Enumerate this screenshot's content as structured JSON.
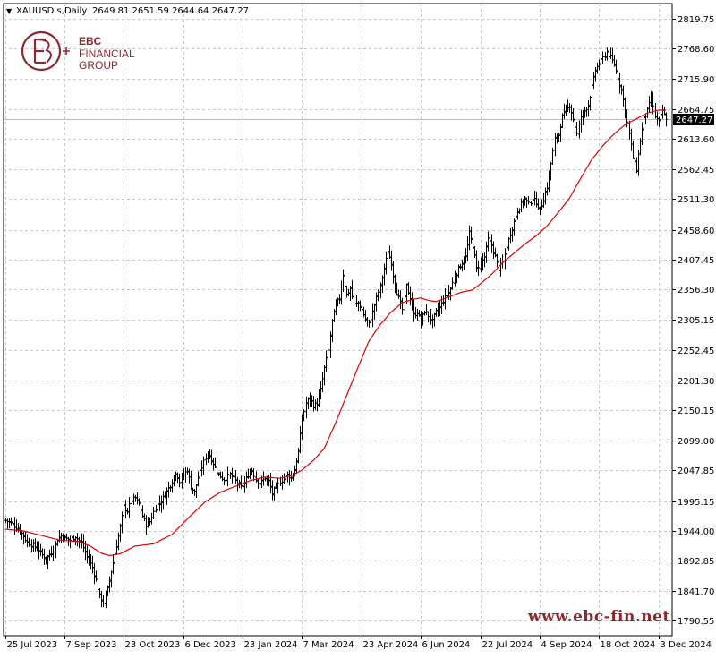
{
  "header": {
    "symbol": "XAUUSD.s,Daily",
    "ohlc": "2649.81 2651.59 2644.64 2647.27",
    "dropdown_glyph": "▼"
  },
  "logo": {
    "line1": "EBC",
    "line2": "FINANCIAL",
    "line3": "GROUP",
    "color": "#8b2a2e"
  },
  "watermark": "www.ebc-fin.net",
  "colors": {
    "bar": "#000000",
    "ma": "#e00000",
    "grid": "#c8c8c8",
    "price_label_bg": "#000000",
    "price_label_fg": "#ffffff"
  },
  "chart_data": {
    "type": "ohlc",
    "instrument": "XAUUSD.s",
    "timeframe": "Daily",
    "current_price": 2647.27,
    "current_price_label": "2647.27",
    "ylim": [
      1765.0,
      2845.0
    ],
    "y_ticks": [
      2819.75,
      2768.6,
      2715.9,
      2664.75,
      2613.6,
      2562.45,
      2511.3,
      2458.6,
      2407.45,
      2356.3,
      2305.15,
      2252.45,
      2201.3,
      2150.15,
      2099.0,
      2047.85,
      1995.15,
      1944.0,
      1892.85,
      1841.7,
      1790.55
    ],
    "y_tick_labels": [
      "2819.75",
      "2768.60",
      "2715.90",
      "2664.75",
      "2613.60",
      "2562.45",
      "2511.30",
      "2458.60",
      "2407.45",
      "2356.30",
      "2305.15",
      "2252.45",
      "2201.30",
      "2150.15",
      "2099.00",
      "2047.85",
      "1995.15",
      "1944.00",
      "1892.85",
      "1841.70",
      "1790.55"
    ],
    "x_tick_labels": [
      "25 Jul 2023",
      "7 Sep 2023",
      "23 Oct 2023",
      "6 Dec 2023",
      "23 Jan 2024",
      "7 Mar 2024",
      "23 Apr 2024",
      "6 Jun 2024",
      "22 Jul 2024",
      "4 Sep 2024",
      "18 Oct 2024",
      "3 Dec 2024"
    ],
    "x_tick_index": [
      0,
      32,
      64,
      96,
      128,
      160,
      192,
      224,
      256,
      288,
      320,
      352
    ],
    "bar_count": 357,
    "close_anchors": [
      [
        0,
        1962
      ],
      [
        3,
        1958
      ],
      [
        8,
        1945
      ],
      [
        12,
        1925
      ],
      [
        17,
        1915
      ],
      [
        22,
        1895
      ],
      [
        26,
        1912
      ],
      [
        28,
        1930
      ],
      [
        30,
        1936
      ],
      [
        32,
        1932
      ],
      [
        35,
        1928
      ],
      [
        38,
        1935
      ],
      [
        41,
        1923
      ],
      [
        44,
        1900
      ],
      [
        47,
        1882
      ],
      [
        49,
        1860
      ],
      [
        51,
        1832
      ],
      [
        53,
        1822
      ],
      [
        55,
        1845
      ],
      [
        57,
        1875
      ],
      [
        59,
        1905
      ],
      [
        62,
        1950
      ],
      [
        64,
        1985
      ],
      [
        66,
        1978
      ],
      [
        68,
        1996
      ],
      [
        70,
        2000
      ],
      [
        72,
        1990
      ],
      [
        74,
        1970
      ],
      [
        76,
        1955
      ],
      [
        78,
        1960
      ],
      [
        81,
        1985
      ],
      [
        84,
        1995
      ],
      [
        87,
        2012
      ],
      [
        90,
        2028
      ],
      [
        92,
        2045
      ],
      [
        94,
        2028
      ],
      [
        96,
        2040
      ],
      [
        98,
        2048
      ],
      [
        100,
        2020
      ],
      [
        102,
        2010
      ],
      [
        104,
        2035
      ],
      [
        107,
        2062
      ],
      [
        109,
        2078
      ],
      [
        112,
        2060
      ],
      [
        115,
        2040
      ],
      [
        118,
        2032
      ],
      [
        121,
        2040
      ],
      [
        124,
        2030
      ],
      [
        127,
        2018
      ],
      [
        129,
        2025
      ],
      [
        131,
        2040
      ],
      [
        133,
        2048
      ],
      [
        135,
        2032
      ],
      [
        137,
        2025
      ],
      [
        140,
        2035
      ],
      [
        142,
        2028
      ],
      [
        144,
        2008
      ],
      [
        146,
        2018
      ],
      [
        148,
        2028
      ],
      [
        150,
        2033
      ],
      [
        152,
        2040
      ],
      [
        154,
        2035
      ],
      [
        156,
        2048
      ],
      [
        158,
        2080
      ],
      [
        160,
        2135
      ],
      [
        162,
        2162
      ],
      [
        164,
        2172
      ],
      [
        166,
        2158
      ],
      [
        168,
        2162
      ],
      [
        170,
        2185
      ],
      [
        172,
        2222
      ],
      [
        174,
        2252
      ],
      [
        176,
        2302
      ],
      [
        178,
        2330
      ],
      [
        180,
        2342
      ],
      [
        182,
        2383
      ],
      [
        184,
        2346
      ],
      [
        186,
        2358
      ],
      [
        188,
        2330
      ],
      [
        190,
        2334
      ],
      [
        192,
        2322
      ],
      [
        194,
        2305
      ],
      [
        196,
        2298
      ],
      [
        198,
        2318
      ],
      [
        200,
        2342
      ],
      [
        202,
        2362
      ],
      [
        204,
        2392
      ],
      [
        206,
        2422
      ],
      [
        208,
        2402
      ],
      [
        210,
        2362
      ],
      [
        212,
        2342
      ],
      [
        214,
        2322
      ],
      [
        216,
        2362
      ],
      [
        218,
        2342
      ],
      [
        220,
        2312
      ],
      [
        222,
        2318
      ],
      [
        224,
        2302
      ],
      [
        226,
        2320
      ],
      [
        228,
        2312
      ],
      [
        230,
        2302
      ],
      [
        232,
        2318
      ],
      [
        234,
        2326
      ],
      [
        236,
        2338
      ],
      [
        238,
        2346
      ],
      [
        240,
        2358
      ],
      [
        242,
        2378
      ],
      [
        244,
        2392
      ],
      [
        246,
        2402
      ],
      [
        248,
        2412
      ],
      [
        250,
        2452
      ],
      [
        252,
        2432
      ],
      [
        254,
        2392
      ],
      [
        256,
        2402
      ],
      [
        258,
        2412
      ],
      [
        260,
        2442
      ],
      [
        262,
        2432
      ],
      [
        264,
        2412
      ],
      [
        266,
        2392
      ],
      [
        268,
        2402
      ],
      [
        270,
        2430
      ],
      [
        272,
        2452
      ],
      [
        274,
        2472
      ],
      [
        276,
        2492
      ],
      [
        278,
        2502
      ],
      [
        280,
        2512
      ],
      [
        282,
        2502
      ],
      [
        284,
        2512
      ],
      [
        286,
        2505
      ],
      [
        288,
        2492
      ],
      [
        290,
        2512
      ],
      [
        292,
        2532
      ],
      [
        294,
        2572
      ],
      [
        296,
        2612
      ],
      [
        298,
        2622
      ],
      [
        300,
        2652
      ],
      [
        302,
        2662
      ],
      [
        304,
        2672
      ],
      [
        306,
        2648
      ],
      [
        308,
        2622
      ],
      [
        310,
        2652
      ],
      [
        312,
        2662
      ],
      [
        314,
        2672
      ],
      [
        316,
        2702
      ],
      [
        318,
        2732
      ],
      [
        320,
        2742
      ],
      [
        322,
        2752
      ],
      [
        324,
        2762
      ],
      [
        326,
        2752
      ],
      [
        328,
        2742
      ],
      [
        330,
        2718
      ],
      [
        332,
        2698
      ],
      [
        334,
        2662
      ],
      [
        336,
        2622
      ],
      [
        338,
        2582
      ],
      [
        340,
        2562
      ],
      [
        342,
        2612
      ],
      [
        344,
        2648
      ],
      [
        346,
        2662
      ],
      [
        348,
        2682
      ],
      [
        350,
        2652
      ],
      [
        352,
        2642
      ],
      [
        354,
        2662
      ],
      [
        356,
        2647
      ]
    ],
    "ma_anchors": [
      [
        0,
        1947
      ],
      [
        10,
        1944
      ],
      [
        20,
        1936
      ],
      [
        30,
        1928
      ],
      [
        40,
        1926
      ],
      [
        46,
        1918
      ],
      [
        52,
        1906
      ],
      [
        56,
        1902
      ],
      [
        62,
        1905
      ],
      [
        70,
        1918
      ],
      [
        80,
        1922
      ],
      [
        90,
        1938
      ],
      [
        100,
        1970
      ],
      [
        108,
        1994
      ],
      [
        116,
        2010
      ],
      [
        124,
        2020
      ],
      [
        132,
        2030
      ],
      [
        140,
        2036
      ],
      [
        148,
        2034
      ],
      [
        154,
        2038
      ],
      [
        160,
        2048
      ],
      [
        166,
        2064
      ],
      [
        172,
        2085
      ],
      [
        178,
        2128
      ],
      [
        184,
        2175
      ],
      [
        190,
        2222
      ],
      [
        196,
        2268
      ],
      [
        202,
        2296
      ],
      [
        208,
        2318
      ],
      [
        214,
        2334
      ],
      [
        220,
        2340
      ],
      [
        224,
        2342
      ],
      [
        228,
        2338
      ],
      [
        232,
        2336
      ],
      [
        236,
        2340
      ],
      [
        240,
        2345
      ],
      [
        246,
        2352
      ],
      [
        252,
        2356
      ],
      [
        256,
        2366
      ],
      [
        262,
        2382
      ],
      [
        268,
        2402
      ],
      [
        274,
        2418
      ],
      [
        280,
        2434
      ],
      [
        286,
        2448
      ],
      [
        292,
        2465
      ],
      [
        298,
        2488
      ],
      [
        304,
        2512
      ],
      [
        310,
        2546
      ],
      [
        316,
        2578
      ],
      [
        322,
        2602
      ],
      [
        328,
        2622
      ],
      [
        334,
        2638
      ],
      [
        340,
        2648
      ],
      [
        346,
        2658
      ],
      [
        352,
        2663
      ],
      [
        356,
        2663
      ]
    ]
  }
}
